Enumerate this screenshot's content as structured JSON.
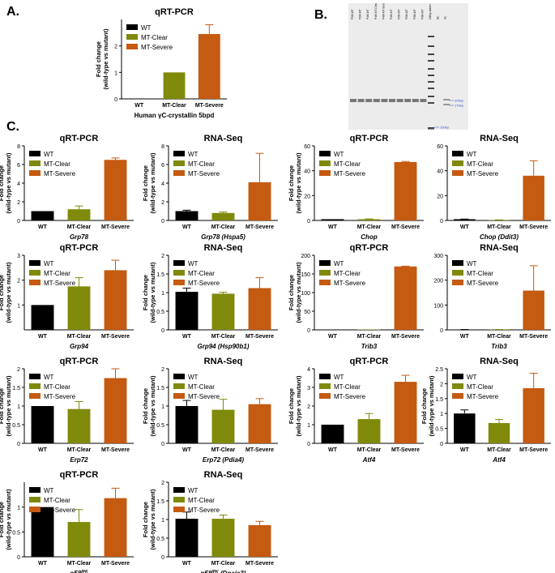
{
  "panel_labels": {
    "a": "A.",
    "b": "B.",
    "c": "C."
  },
  "colors": {
    "WT": "#000000",
    "MT-Clear": "#7f8a0a",
    "MT-Severe": "#c55a11"
  },
  "gel": {
    "lane_labels": [
      "P2W-WT",
      "P2W-WT",
      "P4W-WT",
      "P4W-MT-Clear",
      "P4W-MT-Severe",
      "P4W-MT",
      "P2W-WT",
      "P2W-WT",
      "P3W-WT",
      "P3W-WT",
      "100bp-ladder",
      "NC",
      "PC"
    ],
    "markers": [
      "205bp",
      "179bp",
      "100bp"
    ]
  },
  "chart_data": [
    {
      "id": "A",
      "type": "bar",
      "title": "qRT-PCR",
      "xlabel": "Human γC-crystallin 5bpd",
      "ylabel": "Fold change\n(wild-type vs mutant)",
      "categories": [
        "WT",
        "MT-Clear",
        "MT-Severe"
      ],
      "values": [
        0,
        1.0,
        2.45
      ],
      "errors": [
        0,
        0,
        0.35
      ],
      "ylim": [
        0,
        3
      ],
      "yticks": [
        0,
        1,
        2
      ],
      "legend": [
        "WT",
        "MT-Clear",
        "MT-Severe"
      ],
      "legend_position": "top-left"
    },
    {
      "id": "C1",
      "type": "bar",
      "title": "qRT-PCR",
      "xlabel": "Grp78",
      "ylabel": "Fold change\n(wild-type vs mutant)",
      "categories": [
        "WT",
        "MT-Clear",
        "MT-Severe"
      ],
      "values": [
        1.0,
        1.2,
        6.5
      ],
      "errors": [
        0,
        0.35,
        0.2
      ],
      "ylim": [
        0,
        8
      ],
      "yticks": [
        0,
        2,
        4,
        6,
        8
      ],
      "legend": [
        "WT",
        "MT-Clear",
        "MT-Severe"
      ],
      "legend_position": "top-left"
    },
    {
      "id": "C2",
      "type": "bar",
      "title": "RNA-Seq",
      "xlabel": "Grp78 (Hspa5)",
      "ylabel": "Fold change\n(wild-type vs mutant)",
      "categories": [
        "WT",
        "MT-Clear",
        "MT-Severe"
      ],
      "values": [
        1.0,
        0.8,
        4.1
      ],
      "errors": [
        0.1,
        0.1,
        3.1
      ],
      "ylim": [
        0,
        8
      ],
      "yticks": [
        0,
        2,
        4,
        6,
        8
      ],
      "legend": [
        "WT",
        "MT-Clear",
        "MT-Severe"
      ],
      "legend_position": "top-left"
    },
    {
      "id": "C3",
      "type": "bar",
      "title": "qRT-PCR",
      "xlabel": "Chop",
      "ylabel": "Fold change\n(wild-type vs mutant)",
      "categories": [
        "WT",
        "MT-Clear",
        "MT-Severe"
      ],
      "values": [
        1.0,
        1.0,
        47
      ],
      "errors": [
        0,
        0.2,
        0.5
      ],
      "ylim": [
        0,
        60
      ],
      "yticks": [
        0,
        20,
        40,
        60
      ],
      "legend": [
        "WT",
        "MT-Clear",
        "MT-Severe"
      ],
      "legend_position": "top-left"
    },
    {
      "id": "C4",
      "type": "bar",
      "title": "RNA-Seq",
      "xlabel": "Chop (Ddit3)",
      "ylabel": "",
      "categories": [
        "WT",
        "MT-Clear",
        "MT-Severe"
      ],
      "values": [
        1.0,
        0.4,
        36
      ],
      "errors": [
        0.1,
        0.1,
        12
      ],
      "ylim": [
        0,
        60
      ],
      "yticks": [
        0,
        20,
        40,
        60
      ],
      "legend": [
        "WT",
        "MT-Clear",
        "MT-Severe"
      ],
      "legend_position": "top-left"
    },
    {
      "id": "C5",
      "type": "bar",
      "title": "qRT-PCR",
      "xlabel": "Grp94",
      "ylabel": "Fold change\n(wild-type vs mutant)",
      "categories": [
        "WT",
        "MT-Clear",
        "MT-Severe"
      ],
      "values": [
        1.0,
        1.75,
        2.4
      ],
      "errors": [
        0,
        0.35,
        0.4
      ],
      "ylim": [
        0,
        3
      ],
      "yticks": [
        1,
        2,
        3
      ],
      "legend": [
        "WT",
        "MT-Clear",
        "MT-Severe"
      ],
      "legend_position": "top-left"
    },
    {
      "id": "C6",
      "type": "bar",
      "title": "RNA-Seq",
      "xlabel": "Grp94 (Hsp90b1)",
      "ylabel": "Fold change\n(wild-type vs mutant)",
      "categories": [
        "WT",
        "MT-Clear",
        "MT-Severe"
      ],
      "values": [
        1.02,
        0.97,
        1.12
      ],
      "errors": [
        0.1,
        0.04,
        0.28
      ],
      "ylim": [
        0,
        2
      ],
      "yticks": [
        0,
        0.5,
        1.0,
        1.5,
        2.0
      ],
      "legend": [
        "WT",
        "MT-Clear",
        "MT-Severe"
      ],
      "legend_position": "top-left"
    },
    {
      "id": "C7",
      "type": "bar",
      "title": "qRT-PCR",
      "xlabel": "Trib3",
      "ylabel": "Fold change\n(wild-type vs mutant)",
      "categories": [
        "WT",
        "MT-Clear",
        "MT-Severe"
      ],
      "values": [
        1.0,
        1.0,
        170
      ],
      "errors": [
        0,
        0,
        1
      ],
      "ylim": [
        0,
        200
      ],
      "yticks": [
        0,
        50,
        100,
        150,
        200
      ],
      "legend": [
        "WT",
        "MT-Clear",
        "MT-Severe"
      ],
      "legend_position": "top-left"
    },
    {
      "id": "C8",
      "type": "bar",
      "title": "RNA-Seq",
      "xlabel": "Trib3",
      "ylabel": "",
      "categories": [
        "WT",
        "MT-Clear",
        "MT-Severe"
      ],
      "values": [
        1.0,
        1.0,
        158
      ],
      "errors": [
        0.5,
        0.5,
        100
      ],
      "ylim": [
        0,
        300
      ],
      "yticks": [
        0,
        100,
        200,
        300
      ],
      "legend": [
        "WT",
        "MT-Clear",
        "MT-Severe"
      ],
      "legend_position": "top-left"
    },
    {
      "id": "C9",
      "type": "bar",
      "title": "qRT-PCR",
      "xlabel": "Erp72",
      "ylabel": "Fold change\n(wild-type vs mutant)",
      "categories": [
        "WT",
        "MT-Clear",
        "MT-Severe"
      ],
      "values": [
        1.0,
        0.92,
        1.75
      ],
      "errors": [
        0,
        0.2,
        0.25
      ],
      "ylim": [
        0,
        2.0
      ],
      "yticks": [
        0,
        0.5,
        1.0,
        1.5,
        2.0
      ],
      "legend": [
        "WT",
        "MT-Clear",
        "MT-Severe"
      ],
      "legend_position": "top-left"
    },
    {
      "id": "C10",
      "type": "bar",
      "title": "RNA-Seq",
      "xlabel": "Erp72 (Pdia4)",
      "ylabel": "Fold change\n(wild-type vs mutant)",
      "categories": [
        "WT",
        "MT-Clear",
        "MT-Severe"
      ],
      "values": [
        1.0,
        0.9,
        1.05
      ],
      "errors": [
        0.15,
        0.28,
        0.15
      ],
      "ylim": [
        0,
        2.0
      ],
      "yticks": [
        0,
        0.5,
        1.0,
        1.5,
        2.0
      ],
      "legend": [
        "WT",
        "MT-Clear",
        "MT-Severe"
      ],
      "legend_position": "top-left"
    },
    {
      "id": "C11",
      "type": "bar",
      "title": "qRT-PCR",
      "xlabel": "Atf4",
      "ylabel": "Fold change\n(wild-type vs mutant)",
      "categories": [
        "WT",
        "MT-Clear",
        "MT-Severe"
      ],
      "values": [
        1.0,
        1.3,
        3.3
      ],
      "errors": [
        0,
        0.3,
        0.35
      ],
      "ylim": [
        0,
        4
      ],
      "yticks": [
        0,
        1,
        2,
        3,
        4
      ],
      "legend": [
        "WT",
        "MT-Clear",
        "MT-Severe"
      ],
      "legend_position": "top-left"
    },
    {
      "id": "C12",
      "type": "bar",
      "title": "RNA-Seq",
      "xlabel": "Atf4",
      "ylabel": "Fold change\n(wild-type vs mutant)",
      "categories": [
        "WT",
        "MT-Clear",
        "MT-Severe"
      ],
      "values": [
        1.0,
        0.68,
        1.85
      ],
      "errors": [
        0.12,
        0.12,
        0.5
      ],
      "ylim": [
        0,
        2.5
      ],
      "yticks": [
        0,
        0.5,
        1.0,
        1.5,
        2.0,
        2.5
      ],
      "legend": [
        "WT",
        "MT-Clear",
        "MT-Severe"
      ],
      "legend_position": "top-left"
    },
    {
      "id": "C13",
      "type": "bar",
      "title": "qRT-PCR",
      "xlabel": "p58IPK",
      "ylabel": "Fold change\n(wild-type vs mutant)",
      "categories": [
        "WT",
        "MT-Clear",
        "MT-Severe"
      ],
      "values": [
        1.0,
        0.7,
        1.18
      ],
      "errors": [
        0,
        0.25,
        0.2
      ],
      "ylim": [
        0,
        1.5
      ],
      "yticks": [
        0,
        0.5,
        1.0
      ],
      "legend": [
        "WT",
        "MT-Clear",
        "MT-Severe"
      ],
      "legend_position": "top-left"
    },
    {
      "id": "C14",
      "type": "bar",
      "title": "RNA-Seq",
      "xlabel": "p58IPK (Dnajc3)",
      "ylabel": "Fold change\n(wild-type vs mutant)",
      "categories": [
        "WT",
        "MT-Clear",
        "MT-Severe"
      ],
      "values": [
        1.02,
        1.02,
        0.85
      ],
      "errors": [
        0.18,
        0.1,
        0.1
      ],
      "ylim": [
        0,
        2.0
      ],
      "yticks": [
        0,
        0.5,
        1.0,
        1.5,
        2.0
      ],
      "legend": [
        "WT",
        "MT-Clear",
        "MT-Severe"
      ],
      "legend_position": "top-left"
    }
  ]
}
